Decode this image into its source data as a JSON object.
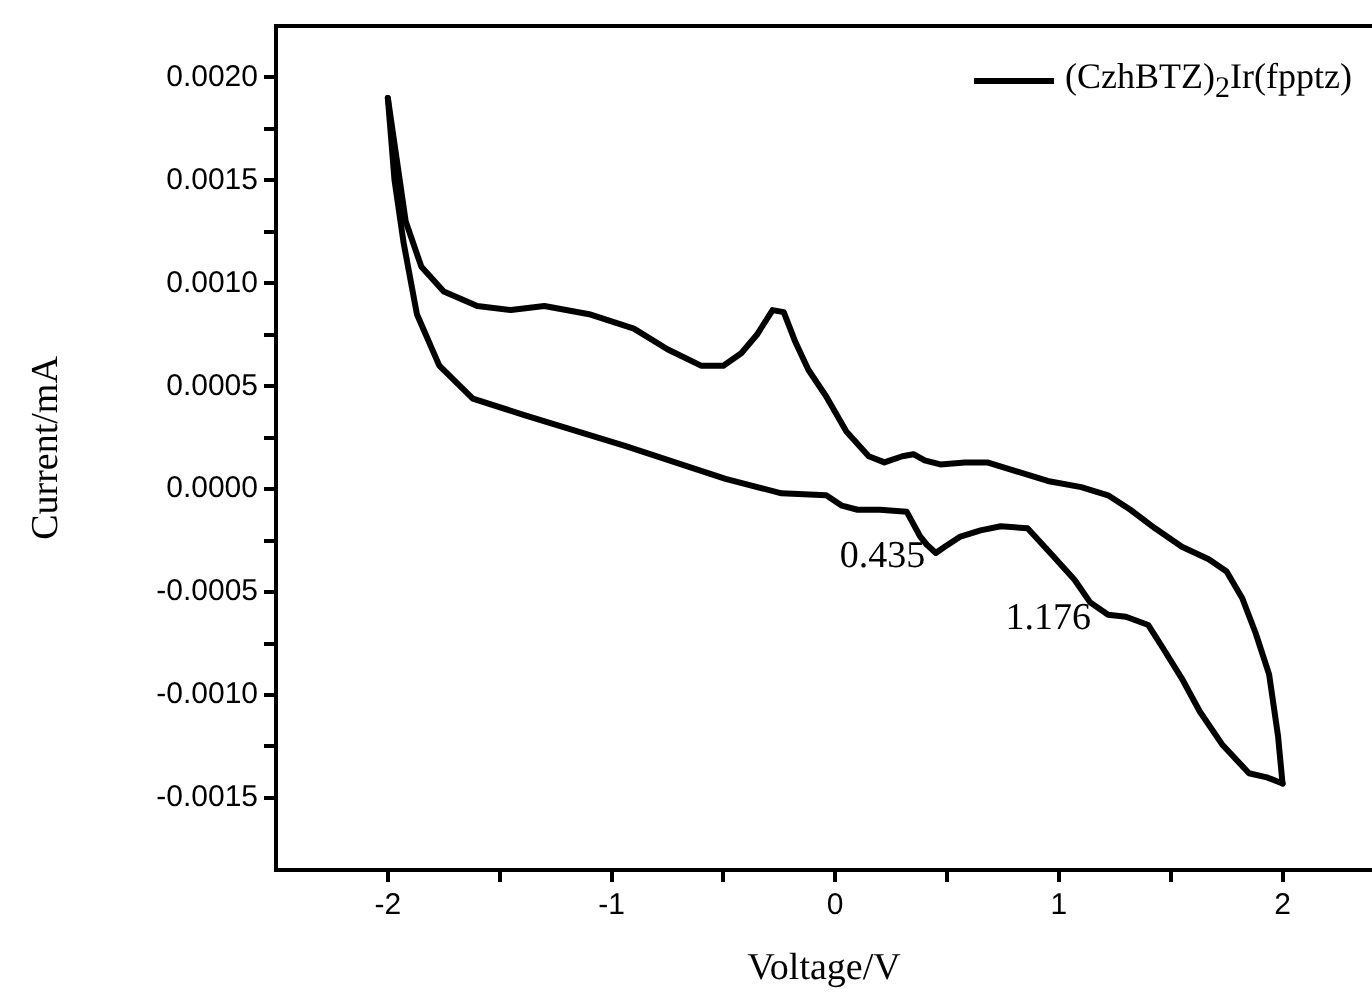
{
  "chart_data": {
    "type": "line",
    "xlabel": "Voltage/V",
    "ylabel": "Current/mA",
    "legend": "top right",
    "marker": "none",
    "line_style": "solid",
    "grid": false,
    "xlim": [
      -2.5,
      2.4
    ],
    "xticks": [
      -2,
      {
        "value": -1.5,
        "label": null
      },
      -1,
      {
        "value": -0.5,
        "label": null
      },
      0,
      {
        "value": 0.5,
        "label": null
      },
      1,
      {
        "value": 1.5,
        "label": null
      },
      2
    ],
    "ylim": [
      -0.00185,
      0.00225
    ],
    "yticks": [
      {
        "value": -0.0015,
        "label": "-0.0015"
      },
      {
        "value": -0.00125,
        "label": null
      },
      {
        "value": -0.001,
        "label": "-0.0010"
      },
      {
        "value": -0.00075,
        "label": null
      },
      {
        "value": -0.0005,
        "label": "-0.0005"
      },
      {
        "value": -0.00025,
        "label": null
      },
      {
        "value": 0,
        "label": "0.0000"
      },
      {
        "value": 0.00025,
        "label": null
      },
      {
        "value": 0.0005,
        "label": "0.0005"
      },
      {
        "value": 0.00075,
        "label": null
      },
      {
        "value": 0.001,
        "label": "0.0010"
      },
      {
        "value": 0.00125,
        "label": null
      },
      {
        "value": 0.0015,
        "label": "0.0015"
      },
      {
        "value": 0.00175,
        "label": null
      },
      {
        "value": 0.002,
        "label": "0.0020"
      }
    ],
    "series": [
      {
        "name": "(CzhBTZ)$_{2}$Ir(fpptz)",
        "color": "#000000",
        "x": [
          -2,
          -1.96,
          -1.92,
          -1.85,
          -1.75,
          -1.6,
          -1.45,
          -1.3,
          -1.1,
          -0.9,
          -0.75,
          -0.6,
          -0.5,
          -0.42,
          -0.35,
          -0.28,
          -0.23,
          -0.18,
          -0.12,
          -0.04,
          0.05,
          0.15,
          0.22,
          0.3,
          0.35,
          0.4,
          0.47,
          0.58,
          0.68,
          0.8,
          0.95,
          1.1,
          1.22,
          1.32,
          1.43,
          1.55,
          1.67,
          1.75,
          1.82,
          1.88,
          1.94,
          1.98,
          2
        ],
        "values": [
          0.0019,
          0.0016,
          0.0013,
          0.00108,
          0.00096,
          0.00089,
          0.00087,
          0.00089,
          0.00085,
          0.00078,
          0.00068,
          0.0006,
          0.0006,
          0.00066,
          0.00075,
          0.00087,
          0.00086,
          0.00072,
          0.00058,
          0.00045,
          0.00028,
          0.00016,
          0.00013,
          0.00016,
          0.00017,
          0.00014,
          0.00012,
          0.00013,
          0.00013,
          9e-05,
          4e-05,
          1e-05,
          -3e-05,
          -0.0001,
          -0.00019,
          -0.00028,
          -0.00034,
          -0.0004,
          -0.00053,
          -0.0007,
          -0.0009,
          -0.0012,
          -0.00143
        ]
      },
      {
        "color": "#000000",
        "x": [
          -2,
          -1.97,
          -1.93,
          -1.87,
          -1.77,
          -1.62,
          -1.39,
          -0.94,
          -0.49,
          -0.24,
          -0.04,
          0.03,
          0.1,
          0.2,
          0.32,
          0.38,
          0.41,
          0.45,
          0.49,
          0.56,
          0.65,
          0.74,
          0.86,
          0.97,
          1.07,
          1.14,
          1.22,
          1.3,
          1.4,
          1.47,
          1.55,
          1.63,
          1.73,
          1.85,
          1.93,
          2
        ],
        "values": [
          0.0019,
          0.0015,
          0.0012,
          0.00085,
          0.0006,
          0.00044,
          0.00036,
          0.00021,
          5e-05,
          -2e-05,
          -3e-05,
          -8e-05,
          -0.0001,
          -0.0001,
          -0.00011,
          -0.00023,
          -0.00027,
          -0.00031,
          -0.00028,
          -0.00023,
          -0.0002,
          -0.00018,
          -0.00019,
          -0.00032,
          -0.00044,
          -0.00055,
          -0.00061,
          -0.00062,
          -0.00066,
          -0.00078,
          -0.00092,
          -0.00108,
          -0.00124,
          -0.00138,
          -0.0014,
          -0.00143
        ]
      }
    ],
    "annotations": [
      {
        "text": "0.435",
        "x": 0.435,
        "y": -0.00031
      },
      {
        "text": "1.176",
        "x": 1.176,
        "y": -0.00061
      }
    ]
  }
}
